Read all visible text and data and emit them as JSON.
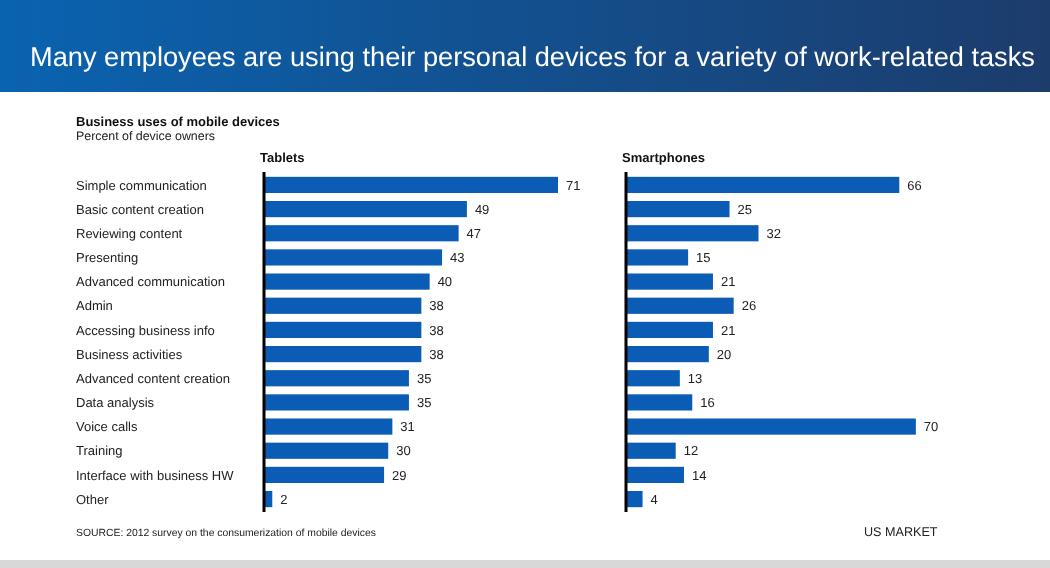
{
  "chart_data": [
    {
      "type": "other",
      "title": "Many employees are using their personal devices for a variety of work-related tasks",
      "subtitle": "Business uses of mobile devices",
      "annotations": [
        "Percent of device owners"
      ]
    },
    {
      "type": "bar",
      "orientation": "horizontal",
      "title": "Tablets",
      "data_labels": true,
      "color": "#0b5cb5",
      "categories": [
        "Simple communication",
        "Basic content creation",
        "Reviewing content",
        "Presenting",
        "Advanced communication",
        "Admin",
        "Accessing business info",
        "Business activities",
        "Advanced content creation",
        "Data analysis",
        "Voice calls",
        "Training",
        "Interface with business HW",
        "Other"
      ],
      "values": [
        71,
        49,
        47,
        43,
        40,
        38,
        38,
        38,
        35,
        35,
        31,
        30,
        29,
        2
      ],
      "annotations": [
        "SOURCE: 2012 survey on the consumerization of mobile devices"
      ]
    },
    {
      "type": "bar",
      "orientation": "horizontal",
      "title": "Smartphones",
      "data_labels": true,
      "color": "#0b5cb5",
      "categories": [
        null,
        null,
        null,
        null,
        null,
        null,
        null,
        null,
        null,
        null,
        null,
        null,
        null,
        null
      ],
      "values": [
        66,
        25,
        32,
        15,
        21,
        26,
        21,
        20,
        13,
        16,
        70,
        12,
        14,
        4
      ],
      "annotations": [
        "US MARKET"
      ]
    }
  ]
}
